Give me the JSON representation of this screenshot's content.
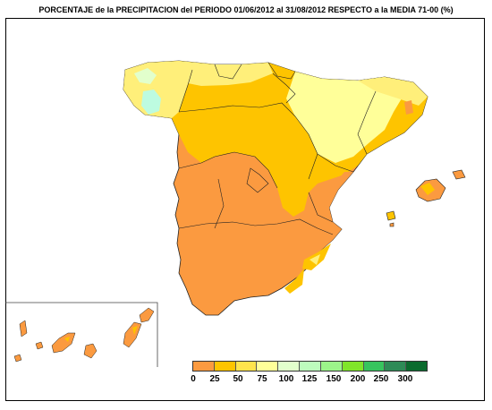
{
  "map": {
    "title": "PORCENTAJE de la PRECIPITACION del PERIODO 01/06/2012 al 31/08/2012 RESPECTO a la MEDIA  71-00 (%)"
  },
  "legend": {
    "labels": [
      "0",
      "25",
      "50",
      "75",
      "100",
      "125",
      "150",
      "200",
      "250",
      "300"
    ],
    "colors": [
      "#fb9a40",
      "#fec400",
      "#ffe44d",
      "#ffff99",
      "#e2ffcc",
      "#bdfbbd",
      "#9cf58a",
      "#80e52a",
      "#37c45e",
      "#2e8b57",
      "#0b6b2e"
    ]
  },
  "palette": {
    "dry_orange": "#fb9a40",
    "amber": "#fec400",
    "light_yellow": "#ffef7a",
    "pale_yellow": "#ffff99",
    "pale_green": "#e2ffcc",
    "mint": "#bdfbe0"
  }
}
